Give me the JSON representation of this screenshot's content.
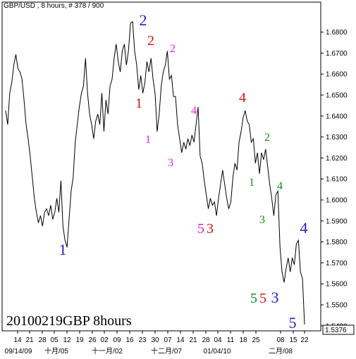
{
  "chart_data": {
    "type": "line",
    "title": "GBP/USD , 8 hours, # 378 / 900",
    "watermark": "20100219GBP 8hours",
    "series": [
      {
        "name": "GBP/USD",
        "color": "#000000",
        "values": [
          1.6426,
          1.6359,
          1.6509,
          1.6559,
          1.6643,
          1.6693,
          1.6626,
          1.661,
          1.6576,
          1.6476,
          1.6359,
          1.6292,
          1.6209,
          1.6108,
          1.6008,
          1.5941,
          1.5891,
          1.5925,
          1.5875,
          1.5941,
          1.5958,
          1.5925,
          1.5975,
          1.5908,
          1.5941,
          1.6008,
          1.5941,
          1.6092,
          1.5875,
          1.5808,
          1.5774,
          1.5908,
          1.6042,
          1.6108,
          1.6275,
          1.6359,
          1.6443,
          1.6509,
          1.6543,
          1.6676,
          1.6509,
          1.6409,
          1.6359,
          1.6292,
          1.6376,
          1.6409,
          1.6359,
          1.6509,
          1.6326,
          1.6476,
          1.6409,
          1.6543,
          1.6576,
          1.6676,
          1.6743,
          1.666,
          1.661,
          1.671,
          1.6743,
          1.6643,
          1.671,
          1.6843,
          1.685,
          1.671,
          1.6643,
          1.6526,
          1.6593,
          1.6509,
          1.6559,
          1.666,
          1.661,
          1.6676,
          1.6576,
          1.6509,
          1.6326,
          1.6409,
          1.6543,
          1.661,
          1.6643,
          1.671,
          1.6576,
          1.6593,
          1.6493,
          1.6493,
          1.6359,
          1.6292,
          1.6225,
          1.6275,
          1.6242,
          1.6292,
          1.6259,
          1.6309,
          1.6275,
          1.6359,
          1.6443,
          1.6209,
          1.6175,
          1.6092,
          1.6025,
          1.5958,
          1.6008,
          1.5975,
          1.5991,
          1.5925,
          1.6008,
          1.6075,
          1.6142,
          1.6075,
          1.6008,
          1.5958,
          1.5991,
          1.6108,
          1.6175,
          1.6142,
          1.6275,
          1.6326,
          1.6392,
          1.6426,
          1.6376,
          1.6359,
          1.6275,
          1.6292,
          1.6175,
          1.6225,
          1.6125,
          1.6225,
          1.6192,
          1.6242,
          1.6158,
          1.6075,
          1.6008,
          1.5925,
          1.6025,
          1.6042,
          1.5774,
          1.5657,
          1.5607,
          1.5674,
          1.5724,
          1.5657,
          1.5724,
          1.5691,
          1.5791,
          1.5808,
          1.5657,
          1.5624,
          1.5407
        ]
      }
    ],
    "ylim": [
      1.5376,
      1.6943
    ],
    "yticks": [
      {
        "value": 1.68,
        "label": "1.6800"
      },
      {
        "value": 1.67,
        "label": "1.6700"
      },
      {
        "value": 1.66,
        "label": "1.6600"
      },
      {
        "value": 1.65,
        "label": "1.6500"
      },
      {
        "value": 1.64,
        "label": "1.6400"
      },
      {
        "value": 1.63,
        "label": "1.6300"
      },
      {
        "value": 1.62,
        "label": "1.6200"
      },
      {
        "value": 1.61,
        "label": "1.6100"
      },
      {
        "value": 1.6,
        "label": "1.6000"
      },
      {
        "value": 1.59,
        "label": "1.5900"
      },
      {
        "value": 1.58,
        "label": "1.5800"
      },
      {
        "value": 1.57,
        "label": "1.5700"
      },
      {
        "value": 1.56,
        "label": "1.5600"
      },
      {
        "value": 1.55,
        "label": "1.5500"
      },
      {
        "value": 1.54,
        "label": "1.5400"
      }
    ],
    "last_price": {
      "value": 1.5376,
      "label": "1.5376"
    },
    "x_day_labels": [
      "14",
      "21",
      "28",
      "05",
      "12",
      "19",
      "26",
      "02",
      "09",
      "16",
      "23",
      "30",
      "07",
      "14",
      "21",
      "28",
      "04",
      "11",
      "18",
      "25",
      "08",
      "15",
      "22"
    ],
    "x_month_labels": [
      "09/14/09",
      "十月/05",
      "十一月/02",
      "十二月/07",
      "01/04/10",
      "二月/08"
    ],
    "annotations": [
      {
        "text": "2",
        "color": "#1f1fd0"
      },
      {
        "text": "2",
        "color": "#e01010"
      },
      {
        "text": "2",
        "color": "#e020e0"
      },
      {
        "text": "1",
        "color": "#e01010"
      },
      {
        "text": "1",
        "color": "#e020e0"
      },
      {
        "text": "3",
        "color": "#e020e0"
      },
      {
        "text": "4",
        "color": "#e020e0"
      },
      {
        "text": "4",
        "color": "#e01010"
      },
      {
        "text": "2",
        "color": "#109010"
      },
      {
        "text": "1",
        "color": "#109010"
      },
      {
        "text": "4",
        "color": "#109010"
      },
      {
        "text": "3",
        "color": "#109010"
      },
      {
        "text": "5",
        "color": "#e020e0"
      },
      {
        "text": "3",
        "color": "#e01010"
      },
      {
        "text": "1",
        "color": "#1f1fd0"
      },
      {
        "text": "4",
        "color": "#1f1fd0"
      },
      {
        "text": "5",
        "color": "#109010"
      },
      {
        "text": "5",
        "color": "#e01010"
      },
      {
        "text": "3",
        "color": "#1f1fd0"
      },
      {
        "text": "5",
        "color": "#1f1fd0"
      }
    ]
  }
}
